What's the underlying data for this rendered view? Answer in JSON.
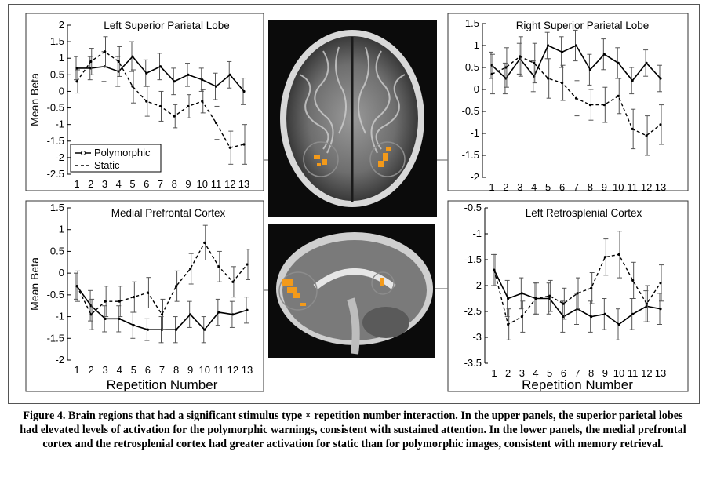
{
  "figure": {
    "caption": "Figure 4. Brain regions that had a significant stimulus type × repetition number interaction. In the upper panels, the superior parietal lobes had elevated levels of activation for the polymorphic warnings, consistent with sustained attention. In the lower panels, the medial prefrontal cortex and the retrosplenial cortex had greater activation for static than for polymorphic images, consistent with memory retrieval."
  },
  "chart_data": [
    {
      "type": "line",
      "title": "Left Superior Parietal Lobe",
      "ylabel": "Mean Beta",
      "xlabel": "",
      "x": [
        1,
        2,
        3,
        4,
        5,
        6,
        7,
        8,
        9,
        10,
        11,
        12,
        13
      ],
      "ylim": [
        -2.5,
        2
      ],
      "yticks": [
        -2.5,
        -2,
        -1.5,
        -1,
        -0.5,
        0,
        0.5,
        1,
        1.5,
        2
      ],
      "legend": {
        "position": "bottom-left",
        "entries": [
          "Polymorphic",
          "Static"
        ]
      },
      "series": [
        {
          "name": "Polymorphic",
          "style": "solid",
          "values": [
            0.7,
            0.7,
            0.75,
            0.6,
            1.05,
            0.55,
            0.75,
            0.3,
            0.5,
            0.35,
            0.15,
            0.5,
            0.0
          ],
          "errors": [
            0.35,
            0.35,
            0.45,
            0.45,
            0.45,
            0.4,
            0.4,
            0.4,
            0.35,
            0.35,
            0.4,
            0.4,
            0.4
          ]
        },
        {
          "name": "Static",
          "style": "dashed",
          "values": [
            0.3,
            0.9,
            1.2,
            0.9,
            0.15,
            -0.3,
            -0.45,
            -0.75,
            -0.45,
            -0.3,
            -0.95,
            -1.7,
            -1.6
          ],
          "errors": [
            0.35,
            0.4,
            0.45,
            0.45,
            0.5,
            0.45,
            0.45,
            0.35,
            0.35,
            0.35,
            0.5,
            0.5,
            0.6
          ]
        }
      ]
    },
    {
      "type": "line",
      "title": "Right Superior Parietal Lobe",
      "ylabel": "",
      "xlabel": "",
      "x": [
        1,
        2,
        3,
        4,
        5,
        6,
        7,
        8,
        9,
        10,
        11,
        12,
        13
      ],
      "ylim": [
        -2,
        1.5
      ],
      "yticks": [
        -2,
        -1.5,
        -1,
        -0.5,
        0,
        0.5,
        1,
        1.5
      ],
      "series": [
        {
          "name": "Polymorphic",
          "style": "solid",
          "values": [
            0.55,
            0.25,
            0.7,
            0.3,
            1.0,
            0.85,
            1.0,
            0.45,
            0.8,
            0.6,
            0.2,
            0.6,
            0.25
          ],
          "errors": [
            0.3,
            0.35,
            0.35,
            0.35,
            0.3,
            0.35,
            0.35,
            0.35,
            0.35,
            0.35,
            0.3,
            0.3,
            0.3
          ]
        },
        {
          "name": "Static",
          "style": "dashed",
          "values": [
            0.35,
            0.5,
            0.75,
            0.6,
            0.25,
            0.15,
            -0.2,
            -0.35,
            -0.35,
            -0.15,
            -0.9,
            -1.05,
            -0.8
          ],
          "errors": [
            0.45,
            0.45,
            0.45,
            0.45,
            0.45,
            0.4,
            0.4,
            0.35,
            0.4,
            0.4,
            0.45,
            0.45,
            0.45
          ]
        }
      ]
    },
    {
      "type": "line",
      "title": "Medial Prefrontal Cortex",
      "ylabel": "Mean Beta",
      "xlabel": "Repetition Number",
      "x": [
        1,
        2,
        3,
        4,
        5,
        6,
        7,
        8,
        9,
        10,
        11,
        12,
        13
      ],
      "ylim": [
        -2,
        1.5
      ],
      "yticks": [
        -2,
        -1.5,
        -1,
        -0.5,
        0,
        0.5,
        1,
        1.5
      ],
      "series": [
        {
          "name": "Polymorphic",
          "style": "solid",
          "values": [
            -0.3,
            -0.75,
            -1.05,
            -1.05,
            -1.2,
            -1.3,
            -1.3,
            -1.3,
            -0.95,
            -1.3,
            -0.9,
            -0.95,
            -0.85
          ],
          "errors": [
            0.3,
            0.35,
            0.3,
            0.3,
            0.3,
            0.25,
            0.3,
            0.3,
            0.3,
            0.3,
            0.3,
            0.3,
            0.3
          ]
        },
        {
          "name": "Static",
          "style": "dashed",
          "values": [
            -0.3,
            -0.95,
            -0.65,
            -0.65,
            -0.55,
            -0.45,
            -0.95,
            -0.3,
            0.1,
            0.7,
            0.15,
            -0.2,
            0.2
          ],
          "errors": [
            0.35,
            0.35,
            0.35,
            0.35,
            0.35,
            0.35,
            0.35,
            0.35,
            0.35,
            0.4,
            0.35,
            0.35,
            0.35
          ]
        }
      ]
    },
    {
      "type": "line",
      "title": "Left Retrosplenial Cortex",
      "ylabel": "",
      "xlabel": "Repetition Number",
      "x": [
        1,
        2,
        3,
        4,
        5,
        6,
        7,
        8,
        9,
        10,
        11,
        12,
        13
      ],
      "ylim": [
        -3.5,
        -0.5
      ],
      "yticks": [
        -3.5,
        -3,
        -2.5,
        -2,
        -1.5,
        -1,
        -0.5
      ],
      "series": [
        {
          "name": "Polymorphic",
          "style": "solid",
          "values": [
            -1.7,
            -2.25,
            -2.15,
            -2.25,
            -2.25,
            -2.6,
            -2.45,
            -2.6,
            -2.55,
            -2.75,
            -2.55,
            -2.4,
            -2.45
          ],
          "errors": [
            0.3,
            0.35,
            0.3,
            0.3,
            0.3,
            0.3,
            0.3,
            0.3,
            0.3,
            0.3,
            0.3,
            0.3,
            0.3
          ]
        },
        {
          "name": "Static",
          "style": "dashed",
          "values": [
            -1.7,
            -2.75,
            -2.6,
            -2.25,
            -2.2,
            -2.35,
            -2.15,
            -2.05,
            -1.45,
            -1.4,
            -1.9,
            -2.35,
            -1.95
          ],
          "errors": [
            0.3,
            0.3,
            0.3,
            0.3,
            0.3,
            0.3,
            0.3,
            0.3,
            0.35,
            0.45,
            0.35,
            0.35,
            0.35
          ]
        }
      ]
    }
  ]
}
